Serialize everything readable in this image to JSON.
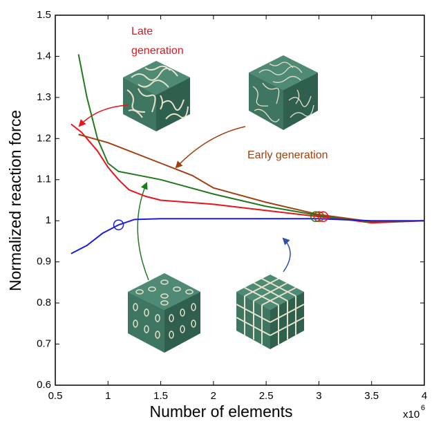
{
  "chart_data": {
    "type": "line",
    "xlabel": "Number of elements",
    "ylabel": "Normalized reaction force",
    "x_offset_text": "x10",
    "x_offset_exp": "6",
    "xlim": [
      0.5,
      4
    ],
    "ylim": [
      0.6,
      1.5
    ],
    "xticks": [
      0.5,
      1,
      1.5,
      2,
      2.5,
      3,
      3.5,
      4
    ],
    "yticks": [
      0.6,
      0.7,
      0.8,
      0.9,
      1,
      1.1,
      1.2,
      1.3,
      1.4,
      1.5
    ],
    "grid": false,
    "series": [
      {
        "color": "#e8141a",
        "x": [
          0.65,
          0.75,
          0.9,
          1.0,
          1.1,
          1.2,
          1.35,
          1.5,
          2.0,
          2.5,
          3.0,
          3.2,
          3.5,
          4.0
        ],
        "values": [
          1.235,
          1.215,
          1.17,
          1.13,
          1.1,
          1.075,
          1.06,
          1.05,
          1.04,
          1.025,
          1.01,
          1.005,
          0.995,
          1.0
        ]
      },
      {
        "color": "#1e7a1e",
        "x": [
          0.72,
          0.8,
          0.9,
          1.0,
          1.1,
          1.3,
          1.5,
          2.0,
          2.5,
          3.0,
          3.3,
          3.5,
          4.0
        ],
        "values": [
          1.405,
          1.3,
          1.2,
          1.14,
          1.12,
          1.11,
          1.1,
          1.065,
          1.035,
          1.013,
          1.003,
          0.997,
          1.0
        ]
      },
      {
        "color": "#a0400f",
        "x": [
          0.72,
          1.0,
          1.5,
          1.8,
          2.0,
          2.5,
          3.0,
          3.5,
          4.0
        ],
        "values": [
          1.21,
          1.19,
          1.14,
          1.11,
          1.08,
          1.045,
          1.015,
          0.998,
          1.0
        ]
      },
      {
        "color": "#1a1ae0",
        "x": [
          0.65,
          0.8,
          0.95,
          1.1,
          1.25,
          1.5,
          2.0,
          3.0,
          3.5,
          4.0
        ],
        "values": [
          0.92,
          0.94,
          0.97,
          0.99,
          1.003,
          1.005,
          1.005,
          1.005,
          1.0,
          1.0
        ]
      }
    ],
    "circles": [
      {
        "color": "#1a1ae0",
        "x": 1.1,
        "y": 0.99
      },
      {
        "color": "#1e7a1e",
        "x": 2.97,
        "y": 1.01
      },
      {
        "color": "#a0400f",
        "x": 3.0,
        "y": 1.01
      },
      {
        "color": "#e8141a",
        "x": 3.04,
        "y": 1.01
      }
    ],
    "annotations": [
      {
        "text": [
          "Late",
          "generation"
        ],
        "color": "#e8141a"
      },
      {
        "text": [
          "Early generation"
        ],
        "color": "#a0400f"
      }
    ]
  }
}
